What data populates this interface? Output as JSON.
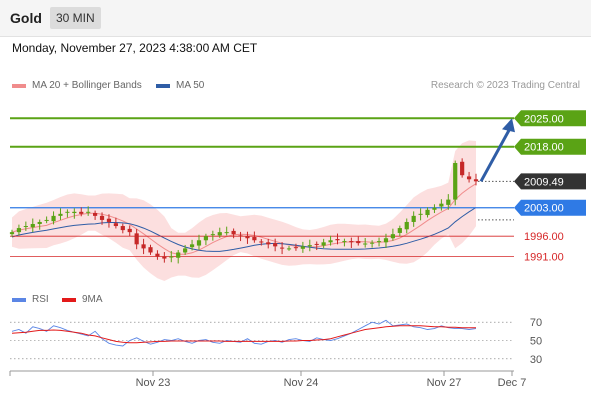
{
  "header": {
    "instrument": "Gold",
    "timeframe": "30 MIN"
  },
  "datetime": "Monday, November 27, 2023 4:38:00 AM CET",
  "legend": {
    "bb_label": "MA 20 + Bollinger Bands",
    "ma50_label": "MA 50",
    "copyright": "Research © 2023 Trading Central",
    "rsi_label": "RSI",
    "rsi_ma_label": "9MA"
  },
  "colors": {
    "resistance": "#5aa315",
    "support": "#d62728",
    "pivot": "#2f7ae5",
    "ma50": "#2f5da6",
    "bb": "#f5a3a3",
    "current": "#333333"
  },
  "chart_data": [
    {
      "type": "candlestick",
      "title": "",
      "x_ticks": [
        "Nov 23",
        "Nov 24",
        "Nov 27",
        "Dec 7"
      ],
      "ylim": [
        1984,
        2029
      ],
      "levels": [
        {
          "label": "2025.00",
          "value": 2025.0,
          "kind": "resistance"
        },
        {
          "label": "2018.00",
          "value": 2018.0,
          "kind": "resistance"
        },
        {
          "label": "2009.49",
          "value": 2009.49,
          "kind": "current"
        },
        {
          "label": "2003.00",
          "value": 2003.0,
          "kind": "pivot"
        },
        {
          "label": "1996.00",
          "value": 1996.0,
          "kind": "support"
        },
        {
          "label": "1991.00",
          "value": 1991.0,
          "kind": "support"
        }
      ],
      "price_path": [
        1997,
        1998,
        1998.5,
        1999,
        1999.5,
        2000,
        2001,
        2001.5,
        2002,
        2002,
        2001.5,
        2002,
        2001,
        2000,
        1999.5,
        1998.5,
        1997.5,
        1997,
        1994,
        1993,
        1992,
        1991,
        1990.5,
        1991,
        1992,
        1993,
        1994,
        1995,
        1996,
        1996.5,
        1997,
        1997,
        1996.5,
        1996,
        1995.5,
        1995,
        1994.5,
        1994,
        1993.5,
        1993,
        1993,
        1993.2,
        1993.5,
        1993.8,
        1994,
        1994.5,
        1995,
        1995,
        1994.8,
        1994.5,
        1994.3,
        1994.2,
        1994.4,
        1994.8,
        1995.5,
        1996.5,
        1998,
        1999.5,
        2001,
        2001.5,
        2002.5,
        2003,
        2004,
        2005,
        2014,
        2011,
        2010,
        2009.49
      ],
      "projection_arrow": {
        "from": 2009.49,
        "to": 2025.0
      }
    },
    {
      "type": "line",
      "title": "",
      "series": [
        {
          "name": "RSI"
        },
        {
          "name": "9MA"
        }
      ],
      "y_ticks": [
        70,
        50,
        30
      ],
      "ylim": [
        20,
        80
      ],
      "rsi": [
        60,
        62,
        58,
        65,
        63,
        60,
        66,
        64,
        61,
        59,
        57,
        55,
        60,
        52,
        47,
        45,
        44,
        50,
        53,
        49,
        46,
        48,
        51,
        50,
        52,
        49,
        47,
        50,
        51,
        48,
        47,
        50,
        49,
        48,
        52,
        47,
        46,
        49,
        50,
        48,
        51,
        52,
        50,
        49,
        53,
        51,
        50,
        52,
        55,
        58,
        62,
        66,
        70,
        68,
        72,
        66,
        67,
        68,
        65,
        64,
        62,
        63,
        66,
        64,
        63,
        63,
        62,
        63
      ],
      "rsi_ma": [
        58,
        58.5,
        59,
        60,
        61,
        61,
        61.5,
        61,
        60,
        59,
        58,
        56,
        55,
        53,
        51,
        49,
        48,
        47.5,
        47.5,
        48,
        48.5,
        49,
        49,
        49.5,
        49.5,
        49.5,
        49.5,
        49.5,
        49.5,
        49.5,
        49.5,
        49,
        49,
        49,
        49,
        49,
        49,
        49,
        49,
        49,
        49.5,
        49.5,
        50,
        50,
        50.5,
        51,
        52,
        54,
        56,
        58,
        60,
        62,
        63,
        64,
        65,
        65.5,
        66,
        66,
        66,
        66,
        65.5,
        65,
        65,
        64.5,
        64.5,
        64,
        64,
        64
      ]
    }
  ]
}
